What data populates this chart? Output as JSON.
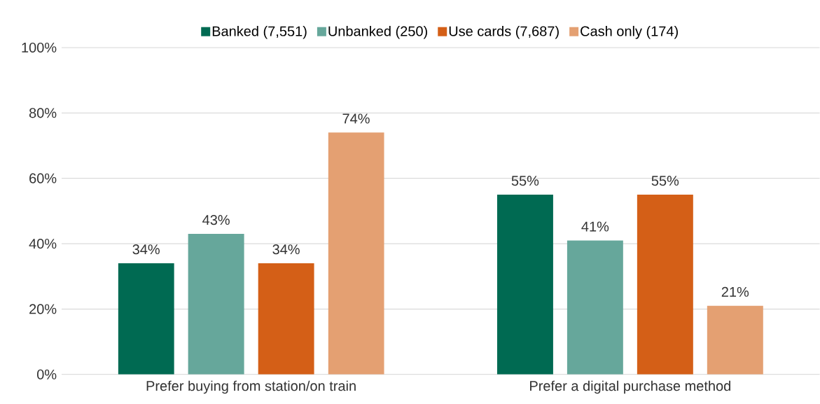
{
  "chart_data": {
    "type": "bar",
    "categories": [
      "Prefer buying from station/on train",
      "Prefer a digital purchase method"
    ],
    "series": [
      {
        "name": "Banked (7,551)",
        "color": "#006a52",
        "values": [
          34,
          55
        ],
        "value_labels": [
          "34%",
          "55%"
        ]
      },
      {
        "name": "Unbanked (250)",
        "color": "#66a79b",
        "values": [
          43,
          41
        ],
        "value_labels": [
          "43%",
          "41%"
        ]
      },
      {
        "name": "Use cards (7,687)",
        "color": "#d45f17",
        "values": [
          34,
          55
        ],
        "value_labels": [
          "34%",
          "55%"
        ]
      },
      {
        "name": "Cash only (174)",
        "color": "#e4a072",
        "values": [
          74,
          21
        ],
        "value_labels": [
          "74%",
          "21%"
        ]
      }
    ],
    "ylim": [
      0,
      100
    ],
    "yticks": [
      {
        "value": 0,
        "label": "0%"
      },
      {
        "value": 20,
        "label": "20%"
      },
      {
        "value": 40,
        "label": "40%"
      },
      {
        "value": 60,
        "label": "60%"
      },
      {
        "value": 80,
        "label": "80%"
      },
      {
        "value": 100,
        "label": "100%"
      }
    ],
    "grid": "y",
    "legend": "top"
  }
}
